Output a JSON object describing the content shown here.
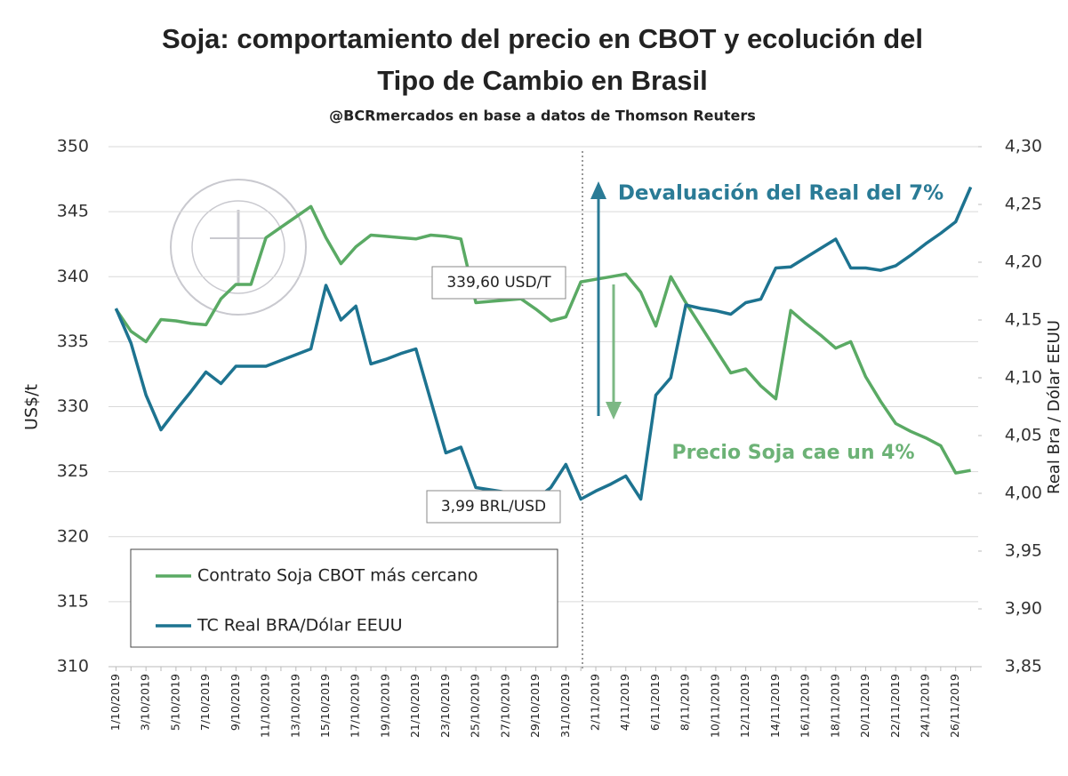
{
  "chart_data": {
    "type": "line",
    "title": [
      "Soja: comportamiento del precio en CBOT y ecolución del",
      "Tipo de Cambio en Brasil"
    ],
    "subtitle": "@BCRmercados en base a datos de Thomson Reuters",
    "y_label": "US$/t",
    "y2_label": "Real Bra / Dólar EEUU",
    "categories": [
      "1/10/2019",
      null,
      "3/10/2019",
      null,
      "5/10/2019",
      null,
      "7/10/2019",
      null,
      "9/10/2019",
      null,
      "11/10/2019",
      null,
      "13/10/2019",
      null,
      "15/10/2019",
      null,
      "17/10/2019",
      null,
      "19/10/2019",
      null,
      "21/10/2019",
      null,
      "23/10/2019",
      null,
      "25/10/2019",
      null,
      "27/10/2019",
      null,
      "29/10/2019",
      null,
      "31/10/2019",
      null,
      "2/11/2019",
      null,
      "4/11/2019",
      null,
      "6/11/2019",
      null,
      "8/11/2019",
      null,
      "10/11/2019",
      null,
      "12/11/2019",
      null,
      "14/11/2019",
      null,
      "16/11/2019",
      null,
      "18/11/2019",
      null,
      "20/11/2019",
      null,
      "22/11/2019",
      null,
      "24/11/2019",
      null,
      "26/11/2019",
      null
    ],
    "series": [
      {
        "name": "Contrato Soja CBOT más cercano",
        "color": "#5aaa64",
        "values": [
          337.5,
          335.8,
          335,
          336.7,
          336.6,
          336.4,
          336.3,
          338.3,
          339.4,
          339.4,
          343,
          343.8,
          344.6,
          345.4,
          343,
          341,
          342.3,
          343.2,
          343.1,
          343,
          342.9,
          343.2,
          343.1,
          342.9,
          338,
          338.1,
          338.2,
          338.3,
          337.5,
          336.6,
          336.9,
          339.6,
          339.8,
          340,
          340.2,
          338.8,
          336.2,
          340,
          338,
          336.2,
          334.4,
          332.6,
          332.9,
          331.6,
          330.6,
          337.4,
          336.4,
          335.5,
          334.5,
          335,
          332.3,
          330.4,
          328.7,
          328.1,
          327.6,
          327,
          324.9,
          325.1
        ]
      },
      {
        "name": "TC Real BRA/Dólar EEUU",
        "color": "#1d7390",
        "axis": "y2",
        "values": [
          4.16,
          4.13,
          4.085,
          4.055,
          4.072,
          4.088,
          4.105,
          4.095,
          4.11,
          4.11,
          4.11,
          4.115,
          4.12,
          4.125,
          4.18,
          4.15,
          4.162,
          4.112,
          4.116,
          4.121,
          4.125,
          4.08,
          4.035,
          4.04,
          4.005,
          4.003,
          4.001,
          4.0,
          3.995,
          4.005,
          4.025,
          3.995,
          4.002,
          4.008,
          4.015,
          3.995,
          4.085,
          4.1,
          4.163,
          4.16,
          4.158,
          4.155,
          4.165,
          4.168,
          4.195,
          4.196,
          4.204,
          4.212,
          4.22,
          4.195,
          4.195,
          4.193,
          4.197,
          4.206,
          4.216,
          4.225,
          4.235,
          4.265
        ]
      }
    ],
    "ylim": [
      310,
      350
    ],
    "yticks": [
      310,
      315,
      320,
      325,
      330,
      335,
      340,
      345,
      350
    ],
    "y2lim": [
      3.85,
      4.3
    ],
    "y2ticks": [
      {
        "value": 3.85,
        "label": "3,85"
      },
      {
        "value": 3.9,
        "label": "3,90"
      },
      {
        "value": 3.95,
        "label": "3,95"
      },
      {
        "value": 4.0,
        "label": "4,00"
      },
      {
        "value": 4.05,
        "label": "4,05"
      },
      {
        "value": 4.1,
        "label": "4,10"
      },
      {
        "value": 4.15,
        "label": "4,15"
      },
      {
        "value": 4.2,
        "label": "4,20"
      },
      {
        "value": 4.25,
        "label": "4,25"
      },
      {
        "value": 4.3,
        "label": "4,30"
      }
    ],
    "grid": true,
    "annotations": [
      "339,60 USD/T",
      "3,99 BRL/USD",
      "Devaluación del Real del 7%",
      "Precio Soja cae un 4%"
    ]
  }
}
